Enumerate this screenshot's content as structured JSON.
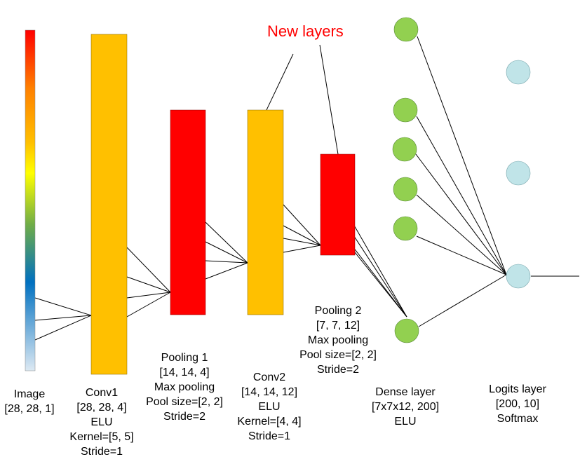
{
  "annotation": {
    "text": "New layers",
    "color": "#ff0000"
  },
  "colors": {
    "conv": "#ffc000",
    "pool": "#ff0000",
    "dense_node": "#92d050",
    "logit_node": "#c0e4e8",
    "image_gradient": [
      "#ff0000",
      "#ff8000",
      "#ffc000",
      "#ffff00",
      "#70ad47",
      "#0070c0",
      "#dde9f3"
    ]
  },
  "layers": [
    {
      "id": "image",
      "kind": "image",
      "lines": [
        "Image",
        "[28, 28, 1]"
      ]
    },
    {
      "id": "conv1",
      "kind": "conv",
      "lines": [
        "Conv1",
        "[28, 28, 4]",
        "ELU",
        "Kernel=[5, 5]",
        "Stride=1"
      ]
    },
    {
      "id": "pool1",
      "kind": "pool",
      "lines": [
        "Pooling 1",
        "[14, 14, 4]",
        "Max pooling",
        "Pool size=[2, 2]",
        "Stride=2"
      ]
    },
    {
      "id": "conv2",
      "kind": "conv",
      "lines": [
        "Conv2",
        "[14, 14, 12]",
        "ELU",
        "Kernel=[4, 4]",
        "Stride=1"
      ]
    },
    {
      "id": "pool2",
      "kind": "pool",
      "lines": [
        "Pooling 2",
        "[7, 7, 12]",
        "Max pooling",
        "Pool size=[2, 2]",
        "Stride=2"
      ]
    },
    {
      "id": "dense",
      "kind": "dense",
      "lines": [
        "Dense layer",
        "[7x7x12, 200]",
        "ELU"
      ]
    },
    {
      "id": "logits",
      "kind": "logits",
      "lines": [
        "Logits layer",
        "[200, 10]",
        "Softmax"
      ]
    }
  ]
}
